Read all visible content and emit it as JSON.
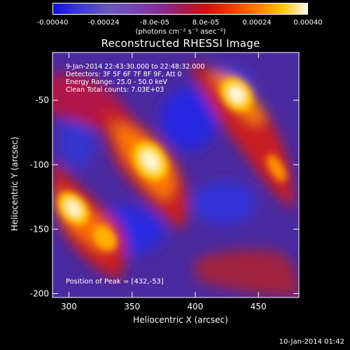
{
  "colorbar": {
    "ticks": [
      "-0.00040",
      "-0.00024",
      "-8.0e-05",
      "8.0e-05",
      "0.00024",
      "0.00040"
    ],
    "units_main": "(photons cm",
    "units_full": "(photons cm⁻² s⁻¹ asec⁻²)"
  },
  "chart_data": {
    "type": "heatmap",
    "title": "Reconstructed RHESSI Image",
    "xlabel": "Heliocentric X (arcsec)",
    "ylabel": "Heliocentric Y (arcsec)",
    "xlim": [
      287,
      482
    ],
    "ylim": [
      -203,
      -13
    ],
    "xticks": [
      "300",
      "350",
      "400",
      "450"
    ],
    "yticks": [
      "-50",
      "-100",
      "-150",
      "-200"
    ],
    "xtick_values": [
      300,
      350,
      400,
      450
    ],
    "ytick_values": [
      -50,
      -100,
      -150,
      -200
    ],
    "colorscale_min": -0.0004,
    "colorscale_max": 0.0004
  },
  "info_lines": [
    "9-Jan-2014 22:43:30.000 to 22:48:32.000",
    "Detectors: 3F 5F 6F 7F 8F 9F, Att 0",
    "Energy Range: 25.0 - 50.0 keV",
    "Clean     Total counts: 7.03E+03"
  ],
  "peak_text": "Position of Peak = [432,-53]",
  "timestamp": "10-Jan-2014 01:42"
}
